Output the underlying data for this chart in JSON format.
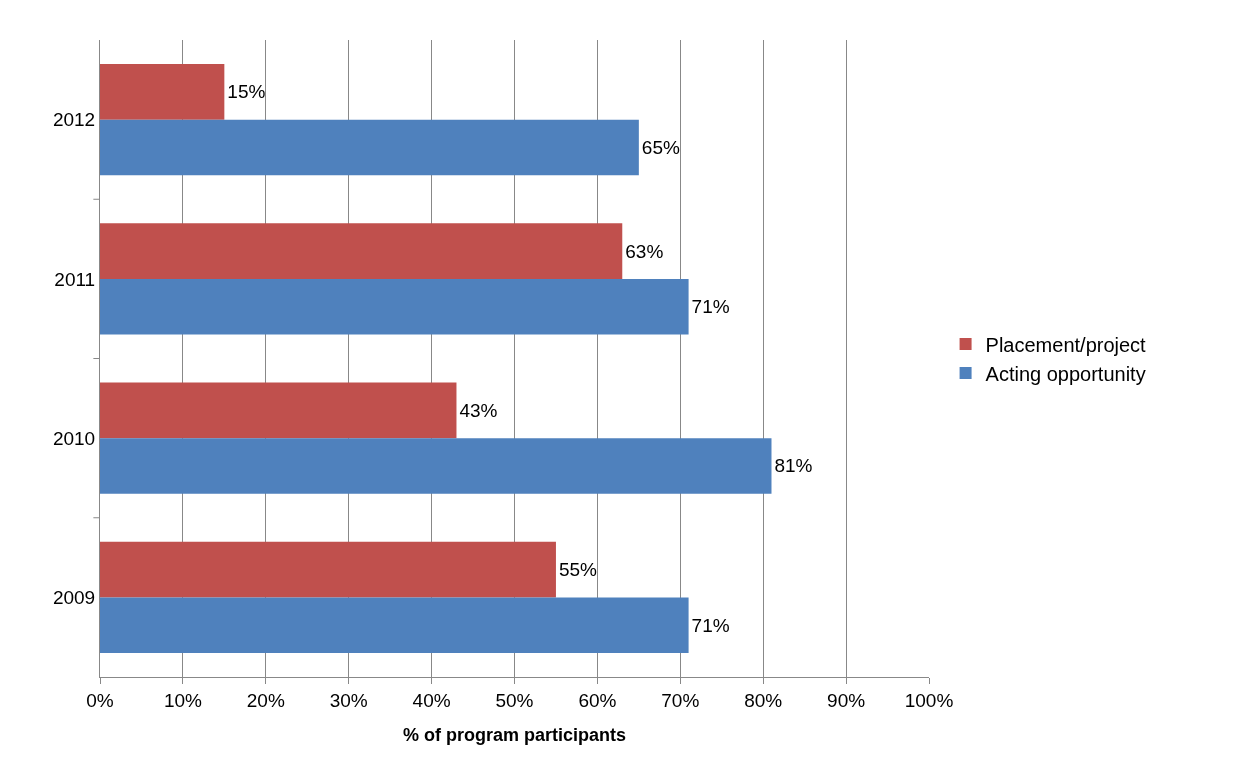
{
  "chart_data": {
    "type": "bar",
    "orientation": "horizontal",
    "xlabel": "% of program participants",
    "categories": [
      "2012",
      "2011",
      "2010",
      "2009"
    ],
    "series": [
      {
        "name": "Placement/project",
        "color": "#c0504d",
        "values": [
          15,
          63,
          43,
          55
        ],
        "value_labels": [
          "15%",
          "63%",
          "43%",
          "55%"
        ]
      },
      {
        "name": "Acting opportunity",
        "color": "#4f81bd",
        "values": [
          65,
          71,
          81,
          71
        ],
        "value_labels": [
          "65%",
          "71%",
          "81%",
          "71%"
        ]
      }
    ],
    "xlim": [
      0,
      100
    ],
    "xticks": [
      {
        "value": 0,
        "label": "0%"
      },
      {
        "value": 10,
        "label": "10%"
      },
      {
        "value": 20,
        "label": "20%"
      },
      {
        "value": 30,
        "label": "30%"
      },
      {
        "value": 40,
        "label": "40%"
      },
      {
        "value": 50,
        "label": "50%"
      },
      {
        "value": 60,
        "label": "60%"
      },
      {
        "value": 70,
        "label": "70%"
      },
      {
        "value": 80,
        "label": "80%"
      },
      {
        "value": 90,
        "label": "90%"
      },
      {
        "value": 100,
        "label": "100%"
      }
    ],
    "grid": "x",
    "legend": "right"
  }
}
